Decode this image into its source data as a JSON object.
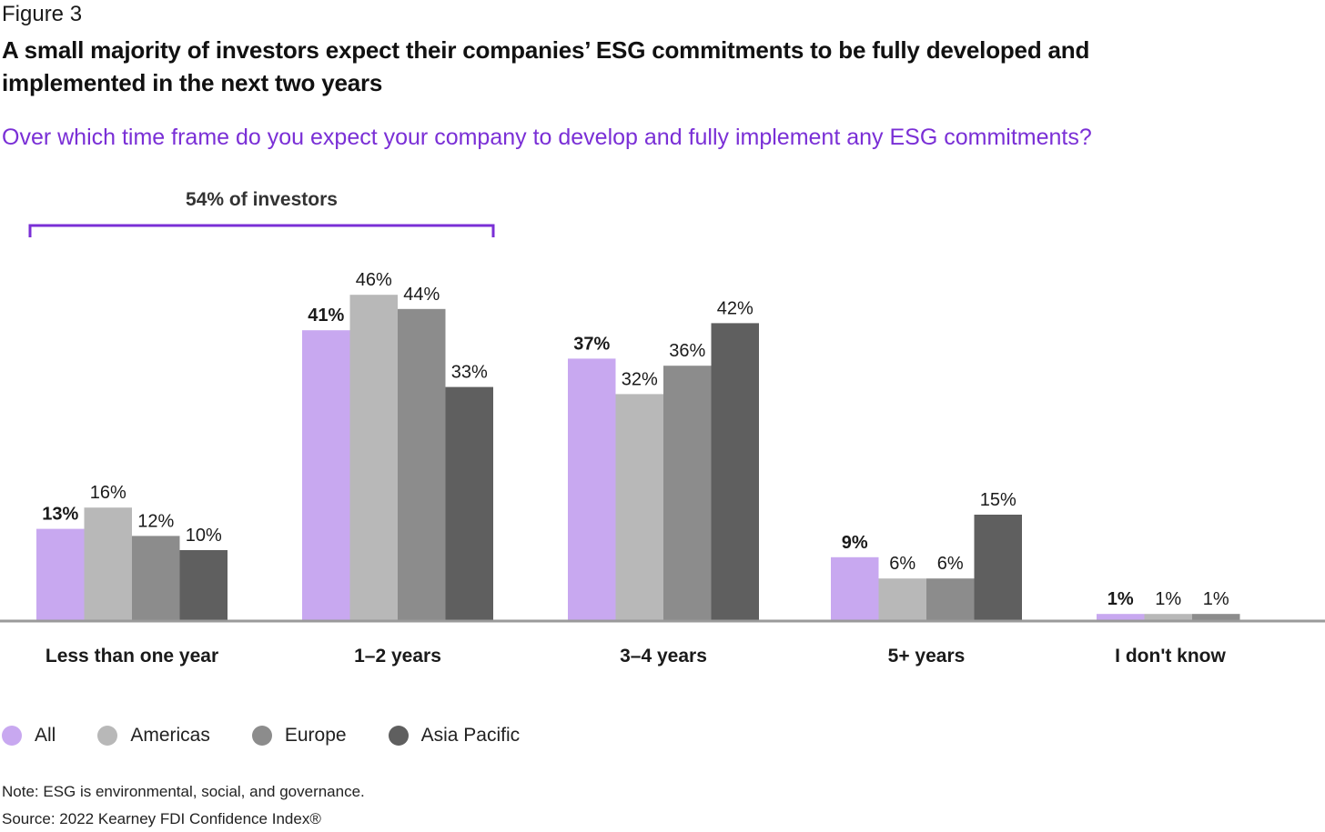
{
  "figure_label": "Figure 3",
  "title": "A small majority of investors expect their companies’ ESG commitments to be fully developed and implemented in the next two years",
  "subtitle": "Over which time frame do you expect your company to develop and fully implement any ESG commitments?",
  "colors": {
    "all": "#c8a8f0",
    "americas": "#b8b8b8",
    "europe": "#8c8c8c",
    "asia_pacific": "#5f5f5f",
    "accent": "#7a2fd6",
    "baseline": "#9a9a9a"
  },
  "chart_data": {
    "type": "bar",
    "title": "Over which time frame do you expect your company to develop and fully implement any ESG commitments?",
    "xlabel": "",
    "ylabel": "",
    "ylim": [
      0,
      50
    ],
    "grid": false,
    "legend_position": "bottom-left",
    "categories": [
      "Less than one year",
      "1–2 years",
      "3–4 years",
      "5+ years",
      "I don't know"
    ],
    "series": [
      {
        "name": "All",
        "values": [
          13,
          41,
          37,
          9,
          1
        ],
        "labels": [
          "13%",
          "41%",
          "37%",
          "9%",
          "1%"
        ],
        "bold_labels": true
      },
      {
        "name": "Americas",
        "values": [
          16,
          46,
          32,
          6,
          1
        ],
        "labels": [
          "16%",
          "46%",
          "32%",
          "6%",
          "1%"
        ],
        "bold_labels": false
      },
      {
        "name": "Europe",
        "values": [
          12,
          44,
          36,
          6,
          1
        ],
        "labels": [
          "12%",
          "44%",
          "36%",
          "6%",
          "1%"
        ],
        "bold_labels": false
      },
      {
        "name": "Asia Pacific",
        "values": [
          10,
          33,
          42,
          15,
          null
        ],
        "labels": [
          "10%",
          "33%",
          "42%",
          "15%",
          ""
        ],
        "bold_labels": false
      }
    ],
    "annotation": {
      "text": "54% of investors",
      "spans_categories": [
        "Less than one year",
        "1–2 years"
      ]
    }
  },
  "legend": [
    {
      "label": "All",
      "color": "#c8a8f0"
    },
    {
      "label": "Americas",
      "color": "#b8b8b8"
    },
    {
      "label": "Europe",
      "color": "#8c8c8c"
    },
    {
      "label": "Asia Pacific",
      "color": "#5f5f5f"
    }
  ],
  "note": "Note: ESG is environmental, social, and governance.",
  "source": "Source: 2022 Kearney FDI Confidence Index®"
}
